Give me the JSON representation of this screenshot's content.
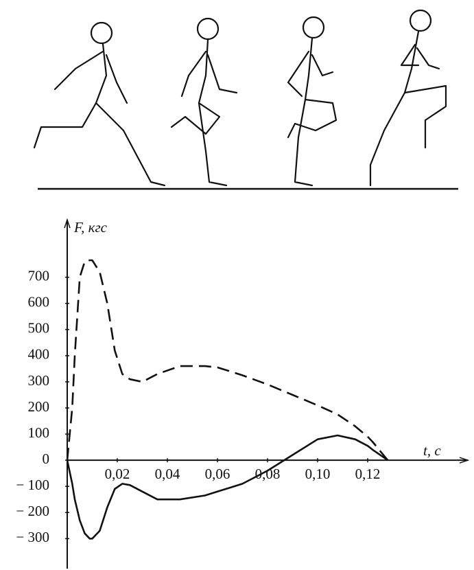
{
  "chart_data": {
    "type": "line",
    "y_label": "F, кгс",
    "x_label": "t, с",
    "x": [
      0,
      0.002,
      0.003,
      0.005,
      0.007,
      0.009,
      0.01,
      0.013,
      0.016,
      0.019,
      0.022,
      0.025,
      0.03,
      0.036,
      0.045,
      0.055,
      0.06,
      0.065,
      0.07,
      0.08,
      0.09,
      0.1,
      0.108,
      0.115,
      0.12,
      0.122,
      0.128
    ],
    "series": [
      {
        "color": "#111111",
        "style": "dashed",
        "values": [
          0,
          200,
          400,
          700,
          760,
          765,
          765,
          720,
          600,
          420,
          330,
          310,
          300,
          330,
          360,
          360,
          355,
          340,
          325,
          290,
          250,
          210,
          175,
          130,
          90,
          70,
          0
        ]
      },
      {
        "color": "#111111",
        "style": "solid",
        "values": [
          0,
          -90,
          -150,
          -230,
          -280,
          -300,
          -300,
          -270,
          -180,
          -110,
          -90,
          -95,
          -120,
          -150,
          -150,
          -135,
          -120,
          -105,
          -90,
          -40,
          20,
          80,
          95,
          80,
          55,
          40,
          0
        ]
      }
    ],
    "xlim": [
      0,
      0.16
    ],
    "ylim": [
      -420,
      920
    ],
    "xticks": [
      {
        "value": 0.02,
        "label": "0,02"
      },
      {
        "value": 0.04,
        "label": "0,04"
      },
      {
        "value": 0.06,
        "label": "0,06"
      },
      {
        "value": 0.08,
        "label": "0,08"
      },
      {
        "value": 0.1,
        "label": "0,10"
      },
      {
        "value": 0.12,
        "label": "0,12"
      }
    ],
    "yticks": [
      700,
      600,
      500,
      400,
      300,
      200,
      100,
      0,
      {
        "value": -100,
        "label": "− 100"
      },
      {
        "value": -200,
        "label": "− 200"
      },
      {
        "value": -300,
        "label": "− 300"
      }
    ]
  }
}
